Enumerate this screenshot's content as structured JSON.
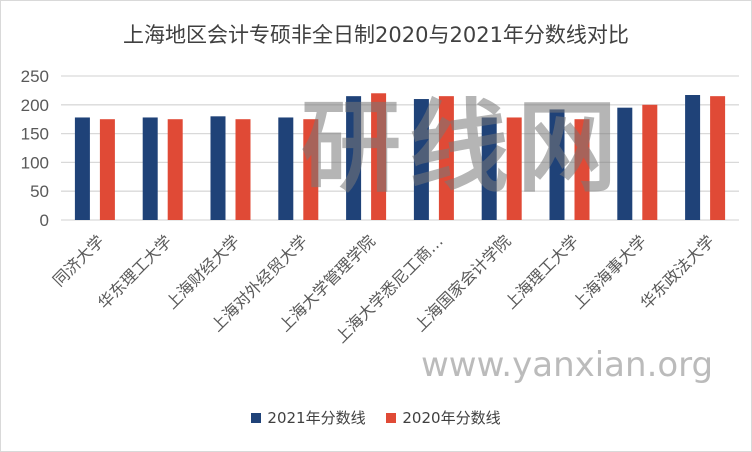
{
  "chart_data": {
    "type": "bar",
    "title": "上海地区会计专硕非全日制2020与2021年分数线对比",
    "categories": [
      "同济大学",
      "华东理工大学",
      "上海财经大学",
      "上海对外经贸大学",
      "上海大学管理学院",
      "上海大学悉尼工商…",
      "上海国家会计学院",
      "上海理工大学",
      "上海海事大学",
      "华东政法大学"
    ],
    "series": [
      {
        "name": "2021年分数线",
        "color": "#1f4278",
        "values": [
          178,
          178,
          180,
          178,
          215,
          210,
          178,
          192,
          195,
          217
        ]
      },
      {
        "name": "2020年分数线",
        "color": "#e04a36",
        "values": [
          175,
          175,
          175,
          175,
          220,
          215,
          178,
          175,
          200,
          215
        ]
      }
    ],
    "ylim": [
      0,
      250
    ],
    "yticks": [
      0,
      50,
      100,
      150,
      200,
      250
    ],
    "grid": true,
    "legend": "bottom"
  },
  "watermark": {
    "text": "研线网",
    "url": "www.yanxian.org"
  }
}
